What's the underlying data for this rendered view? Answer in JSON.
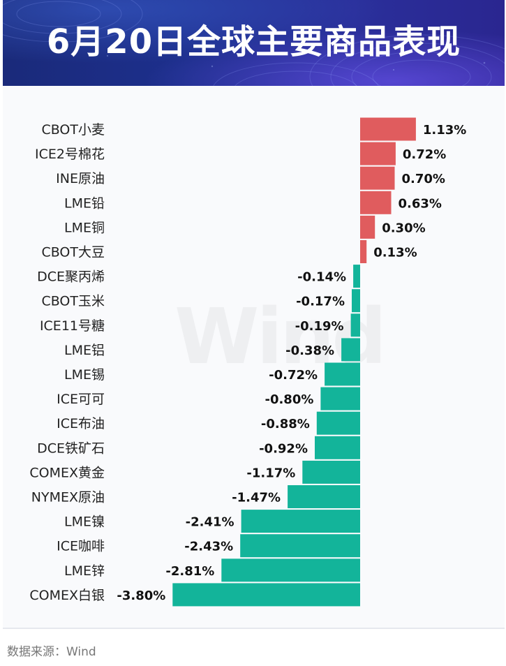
{
  "title": "6月20日全球主要商品表现",
  "source": "数据来源：Wind",
  "watermark": "Wind",
  "colors": {
    "positive": "#e05c5e",
    "negative": "#13b49a",
    "banner": "#1d2f8c",
    "panel": "#f9fafc"
  },
  "chart_data": {
    "type": "bar",
    "orientation": "horizontal",
    "title": "6月20日全球主要商品表现",
    "xlabel": "",
    "ylabel": "",
    "categories": [
      "CBOT小麦",
      "ICE2号棉花",
      "INE原油",
      "LME铅",
      "LME铜",
      "CBOT大豆",
      "DCE聚丙烯",
      "CBOT玉米",
      "ICE11号糖",
      "LME铝",
      "LME锡",
      "ICE可可",
      "ICE布油",
      "DCE铁矿石",
      "COMEX黄金",
      "NYMEX原油",
      "LME镍",
      "ICE咖啡",
      "LME锌",
      "COMEX白银"
    ],
    "values": [
      1.13,
      0.72,
      0.7,
      0.63,
      0.3,
      0.13,
      -0.14,
      -0.17,
      -0.19,
      -0.38,
      -0.72,
      -0.8,
      -0.88,
      -0.92,
      -1.17,
      -1.47,
      -2.41,
      -2.43,
      -2.81,
      -3.8
    ],
    "labels": [
      "1.13%",
      "0.72%",
      "0.70%",
      "0.63%",
      "0.30%",
      "0.13%",
      "-0.14%",
      "-0.17%",
      "-0.19%",
      "-0.38%",
      "-0.72%",
      "-0.80%",
      "-0.88%",
      "-0.92%",
      "-1.17%",
      "-1.47%",
      "-2.41%",
      "-2.43%",
      "-2.81%",
      "-3.80%"
    ],
    "unit": "%",
    "grid": false,
    "legend": "none"
  }
}
